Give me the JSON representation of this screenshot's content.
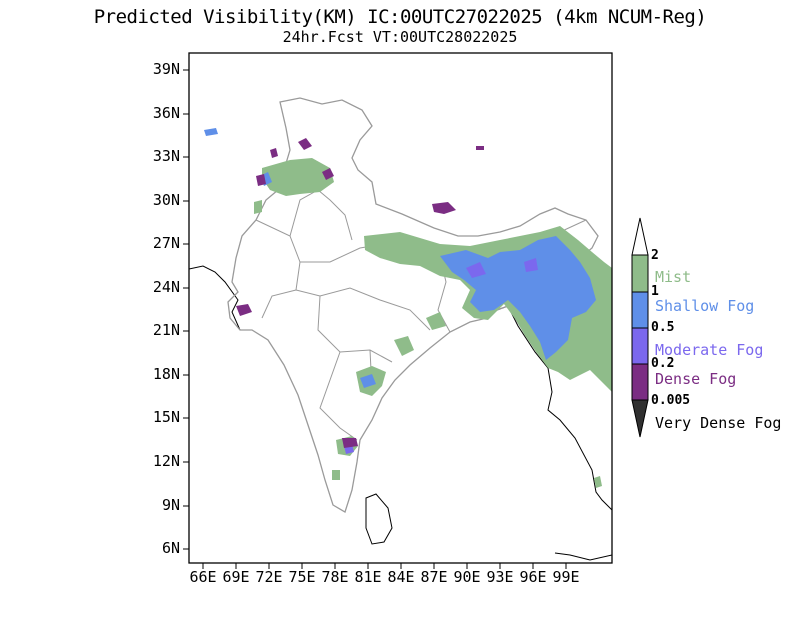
{
  "title": "Predicted Visibility(KM) IC:00UTC27022025 (4km NCUM-Reg)",
  "subtitle": "24hr.Fcst VT:00UTC28022025",
  "lat_ticks": [
    "39N",
    "36N",
    "33N",
    "30N",
    "27N",
    "24N",
    "21N",
    "18N",
    "15N",
    "12N",
    "9N",
    "6N"
  ],
  "lon_ticks": [
    "66E",
    "69E",
    "72E",
    "75E",
    "78E",
    "81E",
    "84E",
    "87E",
    "90E",
    "93E",
    "96E",
    "99E"
  ],
  "legend": {
    "values": [
      "2",
      "1",
      "0.5",
      "0.2",
      "0.005"
    ],
    "classes": [
      {
        "name": "Mist",
        "color": "#8fbc8a"
      },
      {
        "name": "Shallow Fog",
        "color": "#5f8fe8"
      },
      {
        "name": "Moderate Fog",
        "color": "#7b68ee"
      },
      {
        "name": "Dense Fog",
        "color": "#7b2d83"
      },
      {
        "name": "Very Dense Fog",
        "color": "#303030"
      }
    ]
  }
}
